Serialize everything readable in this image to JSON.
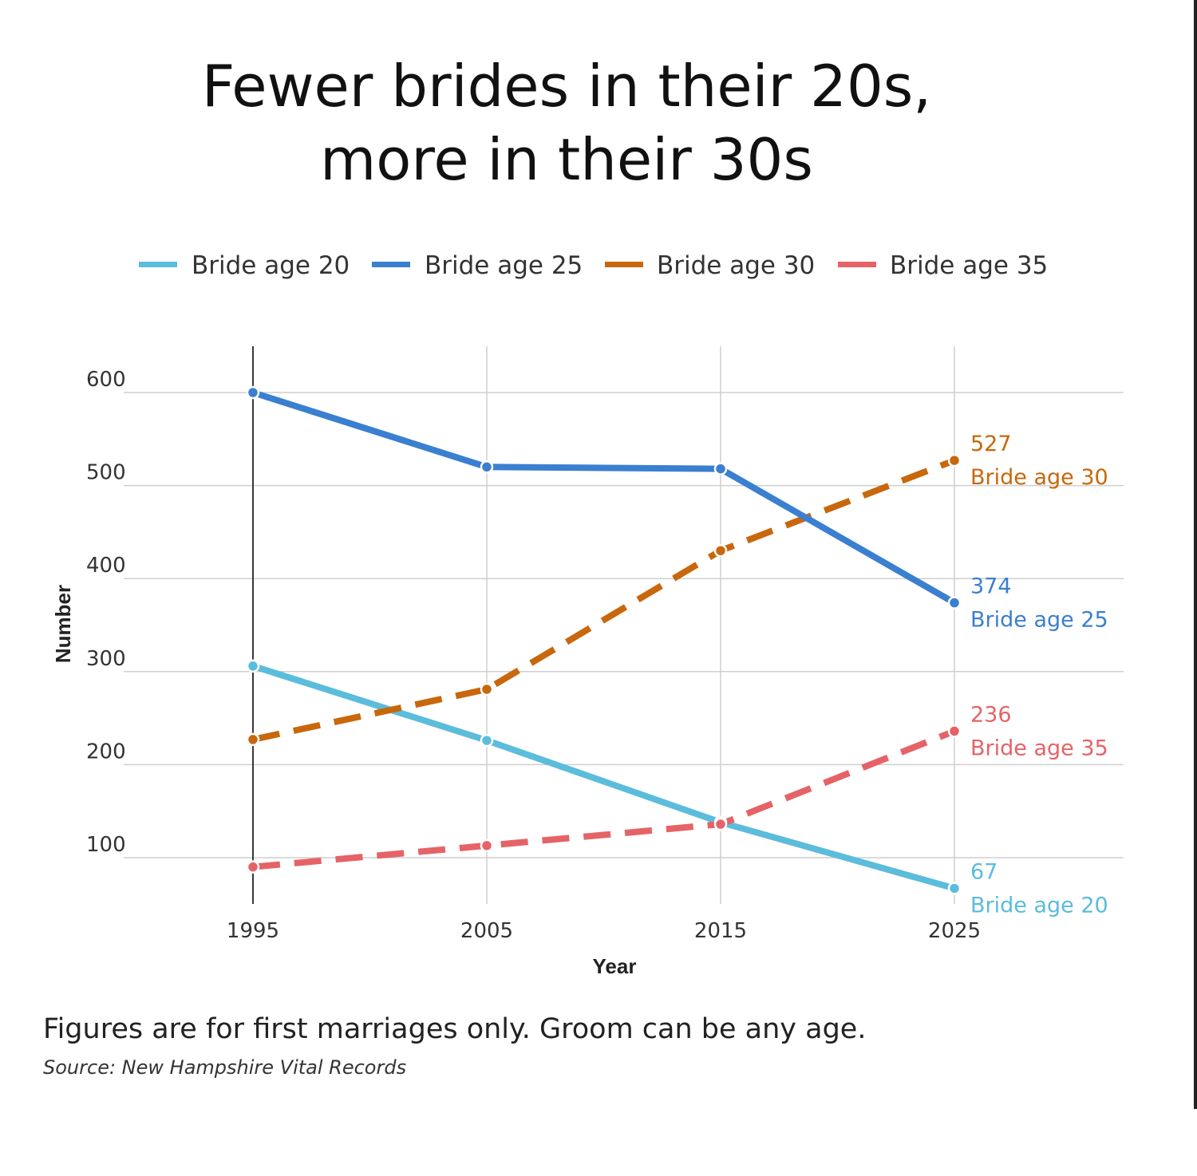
{
  "title_lines": [
    "Fewer brides in their 20s,",
    "more in their 30s"
  ],
  "note": "Figures are for first marriages only. Groom can be any age.",
  "source": "Source: New Hampshire Vital Records",
  "chart_data": {
    "type": "line",
    "title": "Fewer brides in their 20s, more in their 30s",
    "xlabel": "Year",
    "ylabel": "Number",
    "x": [
      1995,
      2005,
      2015,
      2025
    ],
    "x_ticks": [
      "1995",
      "2005",
      "2015",
      "2025"
    ],
    "y_ticks": [
      100,
      200,
      300,
      400,
      500,
      600
    ],
    "ylim": [
      45,
      650
    ],
    "grid": true,
    "legend_position": "top",
    "series": [
      {
        "name": "Bride age 20",
        "values": [
          306,
          226,
          138,
          67
        ],
        "color": "#5bbcdc",
        "dashed": false,
        "end_value_label": "67",
        "end_name_label": "Bride age 20"
      },
      {
        "name": "Bride age 25",
        "values": [
          600,
          520,
          518,
          374
        ],
        "color": "#3a7fd0",
        "dashed": false,
        "end_value_label": "374",
        "end_name_label": "Bride age 25"
      },
      {
        "name": "Bride age 30",
        "values": [
          227,
          281,
          430,
          527
        ],
        "color": "#c8670c",
        "dashed": true,
        "end_value_label": "527",
        "end_name_label": "Bride age 30"
      },
      {
        "name": "Bride age 35",
        "values": [
          90,
          113,
          136,
          236
        ],
        "color": "#e56366",
        "dashed": true,
        "end_value_label": "236",
        "end_name_label": "Bride age 35"
      }
    ]
  }
}
